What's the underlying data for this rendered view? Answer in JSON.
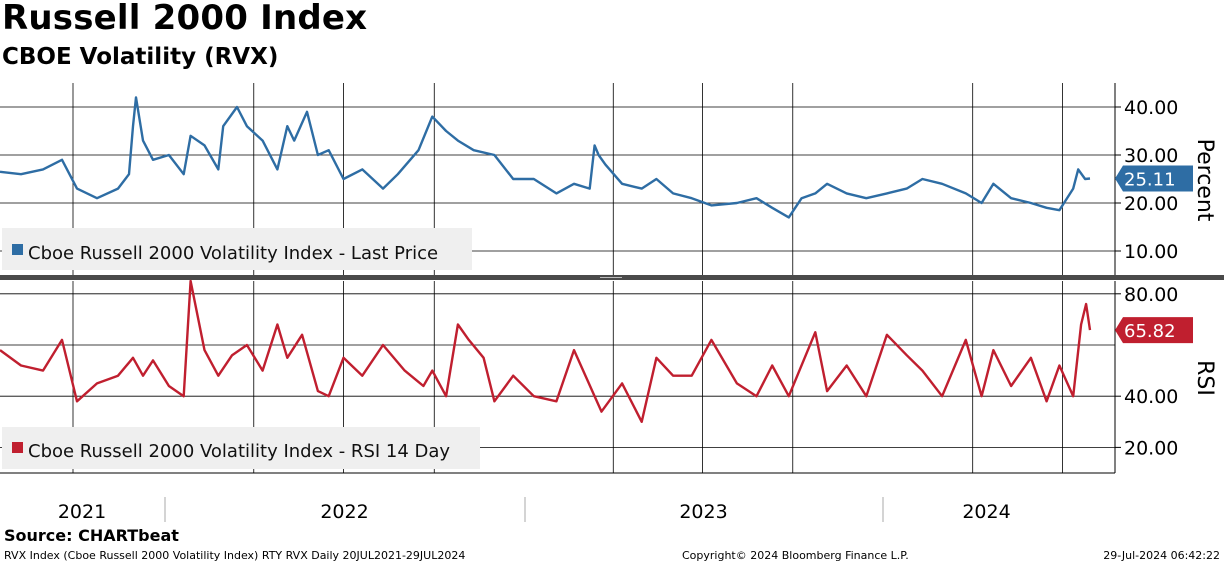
{
  "header": {
    "title": "Russell 2000 Index",
    "subtitle": "CBOE Volatility (RVX)"
  },
  "footer": {
    "source": "Source: CHARTbeat",
    "ticker_line": "RVX Index (Cboe Russell 2000 Volatility Index) RTY RVX  Daily 20JUL2021-29JUL2024",
    "copyright": "Copyright© 2024 Bloomberg Finance L.P.",
    "timestamp": "29-Jul-2024 06:42:22"
  },
  "colors": {
    "price_line": "#2e6da4",
    "rsi_line": "#c01f2f",
    "grid": "#000000",
    "legend_bg": "#efefef"
  },
  "chart_data": [
    {
      "type": "line",
      "panel": "upper",
      "ylabel": "Percent",
      "ylim": [
        5,
        45
      ],
      "y_ticks": [
        "40.00",
        "30.00",
        "20.00",
        "10.00"
      ],
      "y_tick_values": [
        40,
        30,
        20,
        10
      ],
      "last_value_label": "25.11",
      "grid": true,
      "series": [
        {
          "name": "Cboe Russell 2000 Volatility Index - Last Price",
          "x": [
            "2021-07-20",
            "2021-08-10",
            "2021-09-01",
            "2021-09-20",
            "2021-10-05",
            "2021-10-25",
            "2021-11-15",
            "2021-11-26",
            "2021-11-30",
            "2021-12-03",
            "2021-12-10",
            "2021-12-20",
            "2022-01-05",
            "2022-01-20",
            "2022-01-27",
            "2022-02-10",
            "2022-02-24",
            "2022-03-01",
            "2022-03-15",
            "2022-03-25",
            "2022-04-10",
            "2022-04-25",
            "2022-05-05",
            "2022-05-12",
            "2022-05-25",
            "2022-06-05",
            "2022-06-16",
            "2022-07-01",
            "2022-07-20",
            "2022-08-10",
            "2022-08-25",
            "2022-09-15",
            "2022-09-29",
            "2022-10-13",
            "2022-10-25",
            "2022-11-10",
            "2022-12-01",
            "2022-12-20",
            "2023-01-10",
            "2023-02-02",
            "2023-02-20",
            "2023-03-08",
            "2023-03-13",
            "2023-03-17",
            "2023-03-24",
            "2023-04-10",
            "2023-04-30",
            "2023-05-15",
            "2023-06-01",
            "2023-06-20",
            "2023-07-10",
            "2023-08-05",
            "2023-08-25",
            "2023-09-10",
            "2023-09-27",
            "2023-10-10",
            "2023-10-24",
            "2023-11-05",
            "2023-11-25",
            "2023-12-15",
            "2024-01-05",
            "2024-01-25",
            "2024-02-10",
            "2024-03-01",
            "2024-03-25",
            "2024-04-10",
            "2024-04-22",
            "2024-05-10",
            "2024-05-30",
            "2024-06-15",
            "2024-06-28",
            "2024-07-12",
            "2024-07-17",
            "2024-07-24",
            "2024-07-29"
          ],
          "values": [
            26.5,
            26,
            27,
            29,
            23,
            21,
            23,
            26,
            36,
            42,
            33,
            29,
            30,
            26,
            34,
            32,
            27,
            36,
            40,
            36,
            33,
            27,
            36,
            33,
            39,
            30,
            31,
            25,
            27,
            23,
            26,
            31,
            38,
            35,
            33,
            31,
            30,
            25,
            25,
            22,
            24,
            23,
            32,
            30,
            28,
            24,
            23,
            25,
            22,
            21,
            19.5,
            20,
            21,
            19,
            17,
            21,
            22,
            24,
            22,
            21,
            22,
            23,
            25,
            24,
            22,
            20,
            24,
            21,
            20,
            19,
            18.5,
            23,
            27,
            25,
            25.11
          ]
        }
      ]
    },
    {
      "type": "line",
      "panel": "lower",
      "ylabel": "RSI",
      "ylim": [
        10,
        85
      ],
      "y_ticks": [
        "80.00",
        "40.00",
        "20.00"
      ],
      "y_tick_values": [
        80,
        40,
        20
      ],
      "grid_values": [
        80,
        60,
        40,
        20
      ],
      "last_value_label": "65.82",
      "grid": true,
      "series": [
        {
          "name": "Cboe Russell 2000 Volatility Index - RSI 14 Day",
          "x": [
            "2021-07-20",
            "2021-08-10",
            "2021-09-01",
            "2021-09-20",
            "2021-10-05",
            "2021-10-25",
            "2021-11-15",
            "2021-11-30",
            "2021-12-10",
            "2021-12-20",
            "2022-01-05",
            "2022-01-20",
            "2022-01-27",
            "2022-02-10",
            "2022-02-24",
            "2022-03-10",
            "2022-03-25",
            "2022-04-10",
            "2022-04-25",
            "2022-05-05",
            "2022-05-20",
            "2022-06-05",
            "2022-06-16",
            "2022-07-01",
            "2022-07-20",
            "2022-08-10",
            "2022-09-01",
            "2022-09-20",
            "2022-09-29",
            "2022-10-13",
            "2022-10-25",
            "2022-11-05",
            "2022-11-20",
            "2022-12-01",
            "2022-12-20",
            "2023-01-10",
            "2023-02-02",
            "2023-02-20",
            "2023-03-13",
            "2023-03-20",
            "2023-04-10",
            "2023-04-30",
            "2023-05-15",
            "2023-06-01",
            "2023-06-20",
            "2023-07-10",
            "2023-08-05",
            "2023-08-25",
            "2023-09-10",
            "2023-09-27",
            "2023-10-24",
            "2023-11-05",
            "2023-11-25",
            "2023-12-15",
            "2024-01-05",
            "2024-01-25",
            "2024-02-10",
            "2024-03-01",
            "2024-03-25",
            "2024-04-10",
            "2024-04-22",
            "2024-05-10",
            "2024-05-30",
            "2024-06-15",
            "2024-06-28",
            "2024-07-12",
            "2024-07-20",
            "2024-07-25",
            "2024-07-29"
          ],
          "values": [
            58,
            52,
            50,
            62,
            38,
            45,
            48,
            55,
            48,
            54,
            44,
            40,
            85,
            58,
            48,
            56,
            60,
            50,
            68,
            55,
            64,
            42,
            40,
            55,
            48,
            60,
            50,
            44,
            50,
            40,
            68,
            62,
            55,
            38,
            48,
            40,
            38,
            58,
            40,
            34,
            45,
            30,
            55,
            48,
            48,
            62,
            45,
            40,
            52,
            40,
            65,
            42,
            52,
            40,
            64,
            56,
            50,
            40,
            62,
            40,
            58,
            44,
            55,
            38,
            52,
            40,
            68,
            76,
            65.82
          ]
        }
      ]
    }
  ],
  "x_axis": {
    "years": [
      "2021",
      "2022",
      "2023",
      "2024"
    ]
  }
}
